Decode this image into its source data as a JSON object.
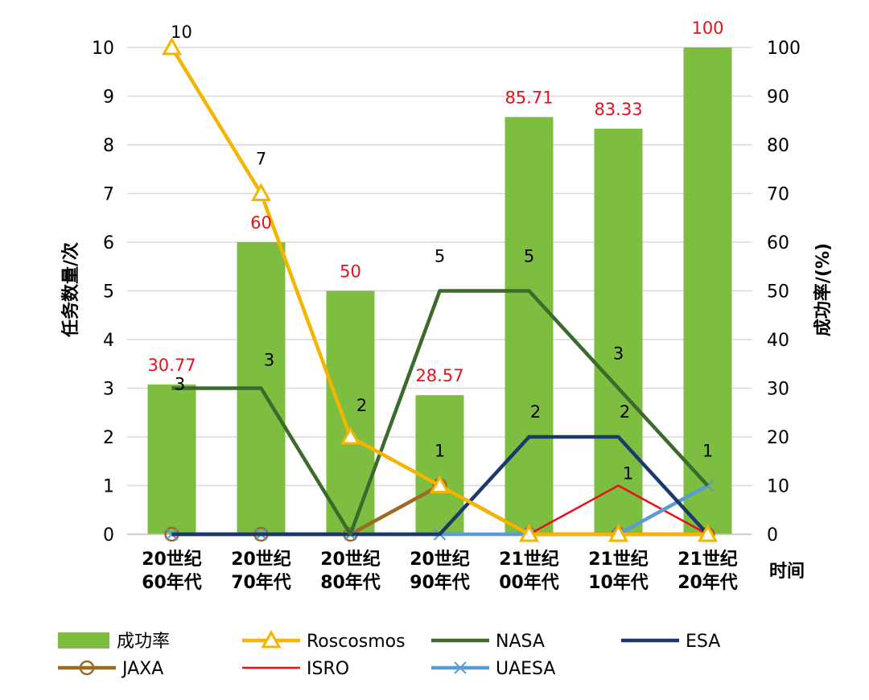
{
  "chart_data": {
    "type": "bar",
    "categories": [
      [
        "20世纪",
        "60年代"
      ],
      [
        "20世纪",
        "70年代"
      ],
      [
        "20世纪",
        "80年代"
      ],
      [
        "20世纪",
        "90年代"
      ],
      [
        "21世纪",
        "00年代"
      ],
      [
        "21世纪",
        "10年代"
      ],
      [
        "21世纪",
        "20年代"
      ]
    ],
    "xlabel": "时间",
    "ylabel_left": "任务数量/次",
    "ylabel_right": "成功率/(%)",
    "ylim_left": [
      0,
      10
    ],
    "ylim_right": [
      0,
      100
    ],
    "yticks_left": [
      "0",
      "1",
      "2",
      "3",
      "4",
      "5",
      "6",
      "7",
      "8",
      "9",
      "10"
    ],
    "yticks_right": [
      "0",
      "10",
      "20",
      "30",
      "40",
      "50",
      "60",
      "70",
      "80",
      "90",
      "100"
    ],
    "grid": true,
    "legend_position": "bottom",
    "bar_series": {
      "name": "成功率",
      "axis": "right",
      "color": "#7dbd3f",
      "values": [
        30.77,
        60,
        50,
        28.57,
        85.71,
        83.33,
        100
      ],
      "labels": [
        "30.77",
        "60",
        "50",
        "28.57",
        "85.71",
        "83.33",
        "100"
      ]
    },
    "line_series": [
      {
        "name": "Roscosmos",
        "color": "#f5b400",
        "marker": "triangle",
        "values": [
          10,
          7,
          2,
          1,
          0,
          0,
          0
        ],
        "labels": [
          "10",
          "7",
          "2",
          "",
          "",
          "",
          ""
        ]
      },
      {
        "name": "NASA",
        "color": "#3a6b2c",
        "marker": "none",
        "values": [
          3,
          3,
          0,
          5,
          5,
          3,
          1
        ],
        "labels": [
          "3",
          "3",
          "",
          "5",
          "5",
          "3",
          "1"
        ]
      },
      {
        "name": "ESA",
        "color": "#1b3a6b",
        "marker": "none",
        "values": [
          0,
          0,
          0,
          0,
          2,
          2,
          0
        ],
        "labels": [
          "",
          "",
          "",
          "",
          "2",
          "2",
          ""
        ]
      },
      {
        "name": "JAXA",
        "color": "#9c6a23",
        "marker": "circle",
        "values": [
          0,
          0,
          0,
          1,
          0,
          0,
          0
        ],
        "labels": [
          "",
          "",
          "",
          "1",
          "",
          "",
          ""
        ]
      },
      {
        "name": "ISRO",
        "color": "#e8101a",
        "marker": "none",
        "values": [
          0,
          0,
          0,
          0,
          0,
          1,
          0
        ],
        "labels": [
          "",
          "",
          "",
          "",
          "",
          "1",
          ""
        ]
      },
      {
        "name": "UAESA",
        "color": "#5b9bd5",
        "marker": "x",
        "values": [
          0,
          0,
          0,
          0,
          0,
          0,
          1
        ],
        "labels": [
          "",
          "",
          "",
          "",
          "",
          "",
          ""
        ]
      }
    ]
  }
}
